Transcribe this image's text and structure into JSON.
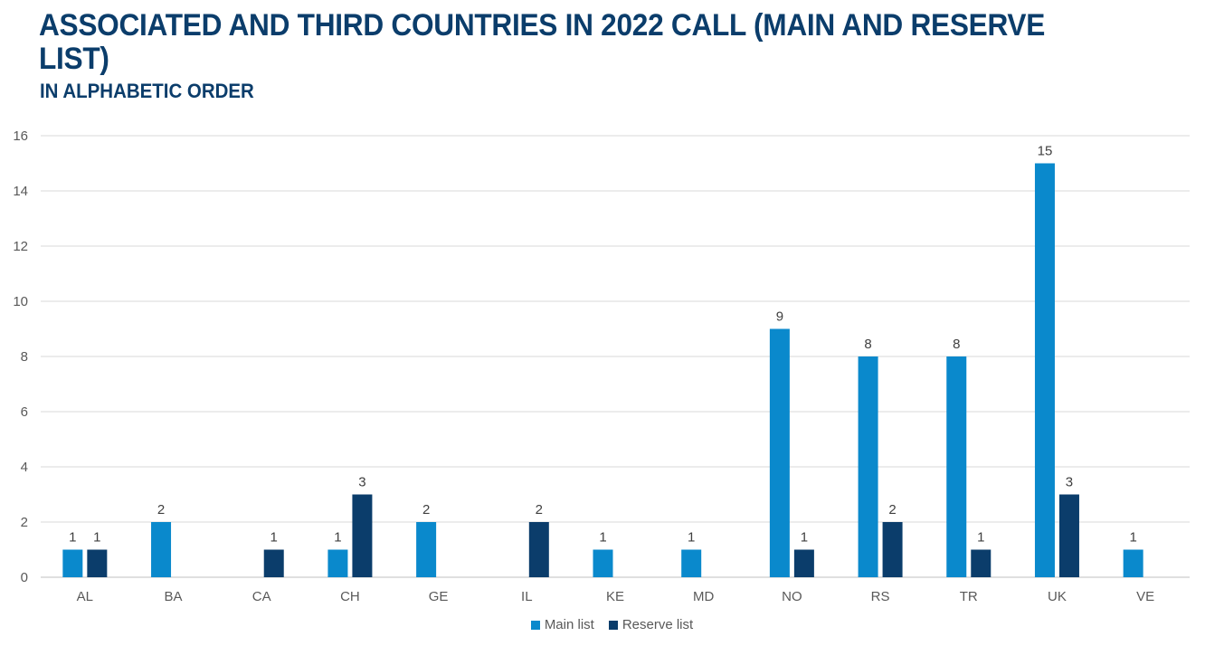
{
  "title": "ASSOCIATED AND THIRD COUNTRIES IN 2022 CALL (MAIN AND RESERVE LIST)",
  "subtitle": "IN ALPHABETIC ORDER",
  "colors": {
    "main": "#0a89cc",
    "reserve": "#0b3d6b",
    "grid": "#d9d9d9",
    "title": "#0b3d6b"
  },
  "chart_data": {
    "type": "bar",
    "categories": [
      "AL",
      "BA",
      "CA",
      "CH",
      "GE",
      "IL",
      "KE",
      "MD",
      "NO",
      "RS",
      "TR",
      "UK",
      "VE"
    ],
    "series": [
      {
        "name": "Main list",
        "values": [
          1,
          2,
          null,
          1,
          2,
          null,
          1,
          1,
          9,
          8,
          8,
          15,
          1
        ]
      },
      {
        "name": "Reserve list",
        "values": [
          1,
          null,
          1,
          3,
          null,
          2,
          null,
          null,
          1,
          2,
          1,
          3,
          null
        ]
      }
    ],
    "ylim": [
      0,
      16
    ],
    "yticks": [
      0,
      2,
      4,
      6,
      8,
      10,
      12,
      14,
      16
    ],
    "grid": true,
    "legend": "bottom"
  }
}
